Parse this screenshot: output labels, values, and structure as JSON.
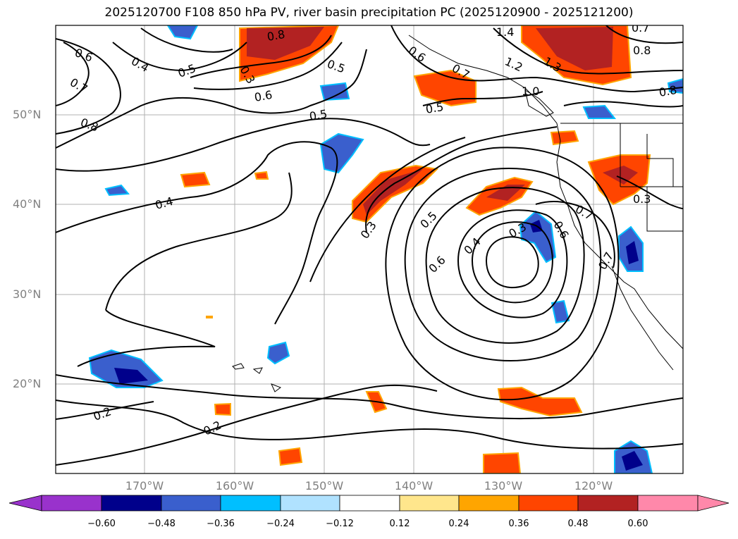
{
  "title": "2025120700 F108 850 hPa PV, river basin precipitation PC (2025120900 - 2025121200)",
  "axes": {
    "lat_labels": [
      "50°N",
      "40°N",
      "30°N",
      "20°N"
    ],
    "lon_labels": [
      "170°W",
      "160°W",
      "150°W",
      "140°W",
      "130°W",
      "120°W"
    ]
  },
  "contour_labels": [
    {
      "text": "0.6",
      "id": "c1"
    },
    {
      "text": "0.4",
      "id": "c2"
    },
    {
      "text": "0.5",
      "id": "c3"
    },
    {
      "text": "0.7",
      "id": "c4"
    },
    {
      "text": "0.8",
      "id": "c5"
    },
    {
      "text": "0.6",
      "id": "c6"
    },
    {
      "text": "0.5",
      "id": "c7"
    },
    {
      "text": "0.5",
      "id": "c8"
    },
    {
      "text": "0.4",
      "id": "c9"
    },
    {
      "text": "0.3",
      "id": "c10"
    },
    {
      "text": "0.5",
      "id": "c11"
    },
    {
      "text": "0.6",
      "id": "c12"
    },
    {
      "text": "0.4",
      "id": "c13"
    },
    {
      "text": "0.3",
      "id": "c14"
    },
    {
      "text": "0.6",
      "id": "c15"
    },
    {
      "text": "0.7",
      "id": "c16"
    },
    {
      "text": "0.2",
      "id": "c17"
    },
    {
      "text": "0.2",
      "id": "c18"
    },
    {
      "text": "1.4",
      "id": "c19"
    },
    {
      "text": "1.2",
      "id": "c20"
    },
    {
      "text": "0.8",
      "id": "c21"
    },
    {
      "text": "0.8",
      "id": "c22"
    },
    {
      "text": "0.7",
      "id": "c23"
    },
    {
      "text": "0.6",
      "id": "c24"
    },
    {
      "text": "0.5",
      "id": "c25"
    },
    {
      "text": "0.3",
      "id": "c26"
    },
    {
      "text": "0.7",
      "id": "c27"
    },
    {
      "text": "1.0",
      "id": "c28"
    },
    {
      "text": "1.3",
      "id": "c29"
    },
    {
      "text": "0.3",
      "id": "c30"
    },
    {
      "text": "0.7",
      "id": "c31"
    },
    {
      "text": "0.8",
      "id": "c32"
    }
  ],
  "colorbar": {
    "ticks": [
      "−0.60",
      "−0.48",
      "−0.36",
      "−0.24",
      "−0.12",
      "0.12",
      "0.24",
      "0.36",
      "0.48",
      "0.60"
    ],
    "colors": [
      "#9932cc",
      "#00008b",
      "#3a5fcd",
      "#00bfff",
      "#b0e2ff",
      "#ffffff",
      "#ffe68c",
      "#ffa500",
      "#ff4500",
      "#b22222",
      "#ff88aa"
    ]
  },
  "colors": {
    "neg_strong": "#00008b",
    "neg_mid": "#3a5fcd",
    "neg_light": "#00bfff",
    "pos_light": "#ffa500",
    "pos_mid": "#ff4500",
    "pos_strong": "#b22222",
    "gridline": "#b0b0b0"
  }
}
